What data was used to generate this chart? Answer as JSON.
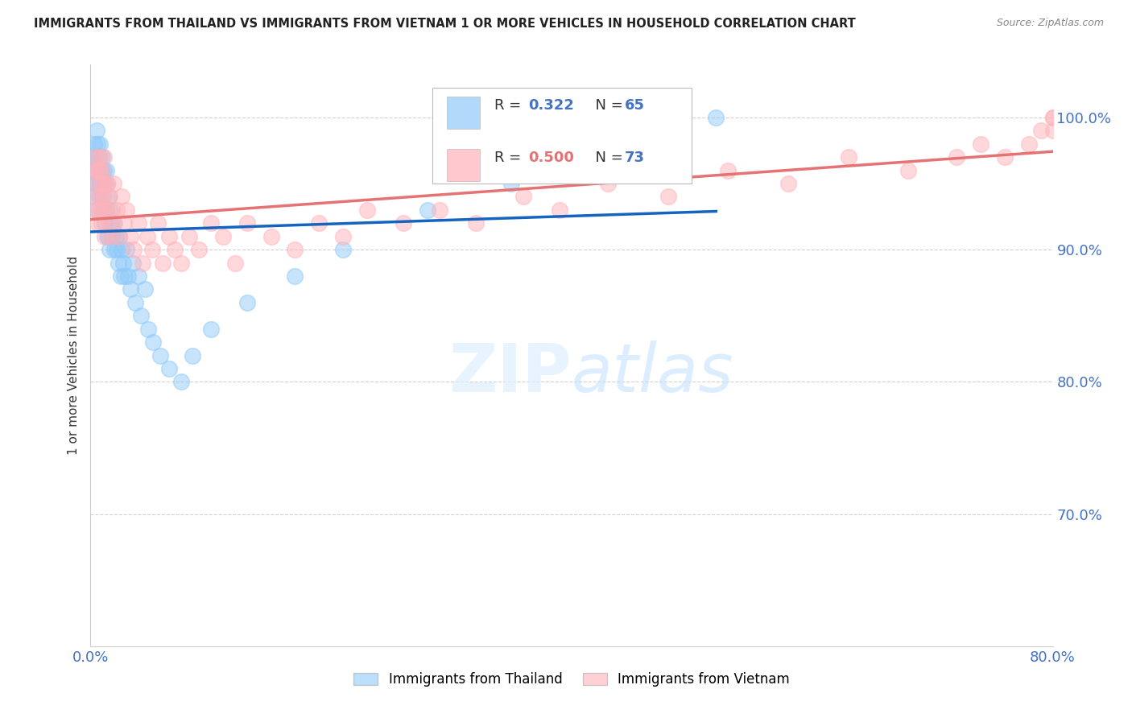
{
  "title": "IMMIGRANTS FROM THAILAND VS IMMIGRANTS FROM VIETNAM 1 OR MORE VEHICLES IN HOUSEHOLD CORRELATION CHART",
  "source": "Source: ZipAtlas.com",
  "ylabel": "1 or more Vehicles in Household",
  "legend_labels": [
    "Immigrants from Thailand",
    "Immigrants from Vietnam"
  ],
  "xlim": [
    0.0,
    0.8
  ],
  "ylim": [
    0.6,
    1.04
  ],
  "y_ticks": [
    0.7,
    0.8,
    0.9,
    1.0
  ],
  "y_tick_labels": [
    "70.0%",
    "80.0%",
    "90.0%",
    "100.0%"
  ],
  "x_ticks": [
    0.0,
    0.8
  ],
  "x_tick_labels": [
    "0.0%",
    "80.0%"
  ],
  "thailand_R": 0.322,
  "thailand_N": 65,
  "vietnam_R": 0.5,
  "vietnam_N": 73,
  "thailand_color": "#90caf9",
  "vietnam_color": "#ffb3ba",
  "thailand_line_color": "#1565c0",
  "vietnam_line_color": "#e57373",
  "background_color": "#ffffff",
  "tick_color": "#4472c4",
  "thailand_x": [
    0.001,
    0.002,
    0.003,
    0.003,
    0.004,
    0.004,
    0.005,
    0.005,
    0.005,
    0.006,
    0.006,
    0.007,
    0.007,
    0.008,
    0.008,
    0.009,
    0.009,
    0.01,
    0.01,
    0.011,
    0.011,
    0.012,
    0.012,
    0.013,
    0.013,
    0.014,
    0.014,
    0.015,
    0.015,
    0.016,
    0.016,
    0.017,
    0.018,
    0.019,
    0.02,
    0.021,
    0.022,
    0.023,
    0.024,
    0.025,
    0.026,
    0.027,
    0.028,
    0.03,
    0.031,
    0.033,
    0.035,
    0.037,
    0.04,
    0.042,
    0.045,
    0.048,
    0.052,
    0.058,
    0.065,
    0.075,
    0.085,
    0.1,
    0.13,
    0.17,
    0.21,
    0.28,
    0.35,
    0.43,
    0.52
  ],
  "thailand_y": [
    0.97,
    0.96,
    0.98,
    0.95,
    0.97,
    0.94,
    0.99,
    0.96,
    0.93,
    0.98,
    0.95,
    0.97,
    0.94,
    0.98,
    0.95,
    0.96,
    0.93,
    0.97,
    0.94,
    0.96,
    0.93,
    0.95,
    0.92,
    0.96,
    0.93,
    0.95,
    0.91,
    0.94,
    0.91,
    0.93,
    0.9,
    0.92,
    0.91,
    0.92,
    0.9,
    0.91,
    0.9,
    0.89,
    0.91,
    0.88,
    0.9,
    0.89,
    0.88,
    0.9,
    0.88,
    0.87,
    0.89,
    0.86,
    0.88,
    0.85,
    0.87,
    0.84,
    0.83,
    0.82,
    0.81,
    0.8,
    0.82,
    0.84,
    0.86,
    0.88,
    0.9,
    0.93,
    0.95,
    0.98,
    1.0
  ],
  "vietnam_x": [
    0.003,
    0.004,
    0.004,
    0.005,
    0.005,
    0.006,
    0.006,
    0.007,
    0.007,
    0.008,
    0.008,
    0.009,
    0.009,
    0.01,
    0.01,
    0.011,
    0.011,
    0.012,
    0.012,
    0.013,
    0.014,
    0.015,
    0.016,
    0.017,
    0.018,
    0.019,
    0.02,
    0.022,
    0.024,
    0.026,
    0.028,
    0.03,
    0.033,
    0.036,
    0.04,
    0.043,
    0.047,
    0.051,
    0.056,
    0.06,
    0.065,
    0.07,
    0.075,
    0.082,
    0.09,
    0.1,
    0.11,
    0.12,
    0.13,
    0.15,
    0.17,
    0.19,
    0.21,
    0.23,
    0.26,
    0.29,
    0.32,
    0.36,
    0.39,
    0.43,
    0.48,
    0.53,
    0.58,
    0.63,
    0.68,
    0.72,
    0.74,
    0.76,
    0.78,
    0.79,
    0.8,
    0.8,
    0.8
  ],
  "vietnam_y": [
    0.96,
    0.97,
    0.94,
    0.96,
    0.93,
    0.95,
    0.92,
    0.96,
    0.93,
    0.97,
    0.94,
    0.95,
    0.92,
    0.96,
    0.93,
    0.97,
    0.94,
    0.95,
    0.91,
    0.93,
    0.95,
    0.92,
    0.94,
    0.91,
    0.93,
    0.95,
    0.92,
    0.93,
    0.91,
    0.94,
    0.92,
    0.93,
    0.91,
    0.9,
    0.92,
    0.89,
    0.91,
    0.9,
    0.92,
    0.89,
    0.91,
    0.9,
    0.89,
    0.91,
    0.9,
    0.92,
    0.91,
    0.89,
    0.92,
    0.91,
    0.9,
    0.92,
    0.91,
    0.93,
    0.92,
    0.93,
    0.92,
    0.94,
    0.93,
    0.95,
    0.94,
    0.96,
    0.95,
    0.97,
    0.96,
    0.97,
    0.98,
    0.97,
    0.98,
    0.99,
    0.99,
    1.0,
    1.0
  ]
}
